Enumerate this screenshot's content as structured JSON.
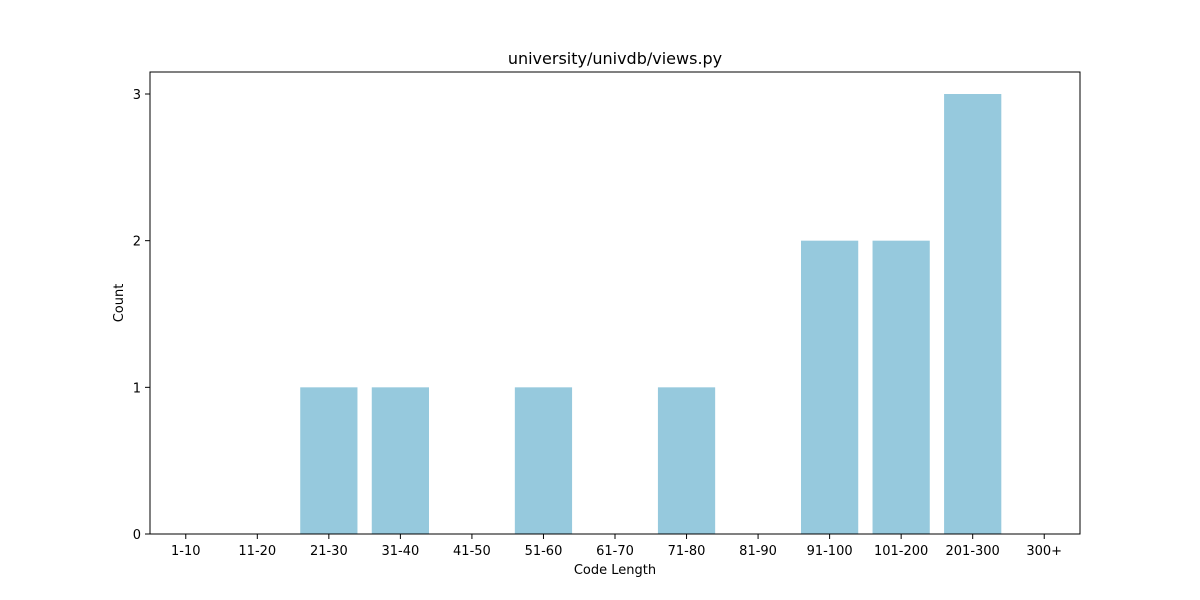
{
  "chart_data": {
    "type": "bar",
    "title": "university/univdb/views.py",
    "xlabel": "Code Length",
    "ylabel": "Count",
    "categories": [
      "1-10",
      "11-20",
      "21-30",
      "31-40",
      "41-50",
      "51-60",
      "61-70",
      "71-80",
      "81-90",
      "91-100",
      "101-200",
      "201-300",
      "300+"
    ],
    "values": [
      0,
      0,
      1,
      1,
      0,
      1,
      0,
      1,
      0,
      2,
      2,
      3,
      0
    ],
    "yticks": [
      0,
      1,
      2,
      3
    ],
    "ylim": [
      0,
      3.15
    ],
    "grid": false,
    "bar_color": "#96c9dd",
    "axis_color": "#000000"
  }
}
